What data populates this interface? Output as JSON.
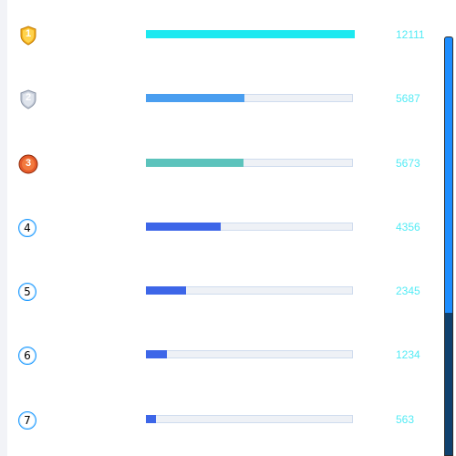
{
  "colors": {
    "track": "#eef1f6",
    "track_border": "#cfdcee",
    "value_text": "#52ebf5",
    "scroll_track": "#10416e",
    "scroll_thumb": "#1d8dff"
  },
  "ranking": {
    "max": 12111,
    "items": [
      {
        "rank": "1",
        "badge": "gold-medal-icon",
        "value": "12111",
        "amount": 12111,
        "color": "#1de9f0"
      },
      {
        "rank": "2",
        "badge": "silver-medal-icon",
        "value": "5687",
        "amount": 5687,
        "color": "#4a9ef0"
      },
      {
        "rank": "3",
        "badge": "bronze-medal-icon",
        "value": "5673",
        "amount": 5673,
        "color": "#5cc3bc"
      },
      {
        "rank": "4",
        "badge": "rank-number-icon",
        "value": "4356",
        "amount": 4356,
        "color": "#3d66e8"
      },
      {
        "rank": "5",
        "badge": "rank-number-icon",
        "value": "2345",
        "amount": 2345,
        "color": "#3d66e8"
      },
      {
        "rank": "6",
        "badge": "rank-number-icon",
        "value": "1234",
        "amount": 1234,
        "color": "#3d66e8"
      },
      {
        "rank": "7",
        "badge": "rank-number-icon",
        "value": "563",
        "amount": 563,
        "color": "#3d66e8"
      }
    ]
  },
  "scrollbar": {
    "visible_fraction": 0.66
  }
}
